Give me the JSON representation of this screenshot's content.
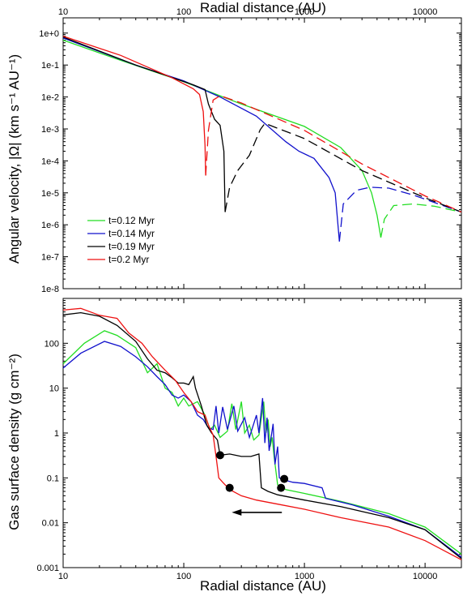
{
  "chart_data": [
    {
      "type": "line",
      "xlabel_top": "Radial distance (AU)",
      "ylabel": "Angular velocity,  |Ω|  (km s⁻¹ AU⁻¹)",
      "x_scale": "log",
      "y_scale": "log",
      "xlim": [
        10,
        20000
      ],
      "ylim": [
        1e-08,
        3
      ],
      "x_ticks": [
        "10",
        "100",
        "1000",
        "10000"
      ],
      "y_ticks": [
        "1e+0",
        "1e-1",
        "1e-2",
        "1e-3",
        "1e-4",
        "1e-5",
        "1e-6",
        "1e-7",
        "1e-8"
      ],
      "legend_position": "lower-left",
      "series": [
        {
          "name": "t=0.12 Myr",
          "color": "#22dd22",
          "solid": [
            [
              10,
              0.6
            ],
            [
              30,
              0.14
            ],
            [
              100,
              0.03
            ],
            [
              300,
              0.006
            ],
            [
              1000,
              0.0012
            ],
            [
              2000,
              0.00026
            ],
            [
              3000,
              5e-05
            ],
            [
              3600,
              1e-05
            ],
            [
              4000,
              2e-06
            ],
            [
              4300,
              4e-07
            ]
          ],
          "dashed": [
            [
              4300,
              4e-07
            ],
            [
              4600,
              1.5e-06
            ],
            [
              5500,
              4e-06
            ],
            [
              8000,
              4.5e-06
            ],
            [
              12000,
              3.8e-06
            ],
            [
              20000,
              2.5e-06
            ]
          ]
        },
        {
          "name": "t=0.14 Myr",
          "color": "#1111cc",
          "solid": [
            [
              10,
              0.7
            ],
            [
              40,
              0.1
            ],
            [
              100,
              0.032
            ],
            [
              200,
              0.01
            ],
            [
              400,
              0.0025
            ],
            [
              700,
              0.0004
            ],
            [
              900,
              0.0002
            ],
            [
              1200,
              0.00012
            ],
            [
              1600,
              3e-05
            ],
            [
              1800,
              1e-05
            ],
            [
              1950,
              3e-07
            ]
          ],
          "dashed": [
            [
              1950,
              3e-07
            ],
            [
              2100,
              4.5e-06
            ],
            [
              2700,
              1.2e-05
            ],
            [
              3500,
              1.5e-05
            ],
            [
              5000,
              1.4e-05
            ],
            [
              8000,
              8.5e-06
            ],
            [
              20000,
              2.5e-06
            ]
          ]
        },
        {
          "name": "t=0.19 Myr",
          "color": "#000000",
          "solid": [
            [
              10,
              0.75
            ],
            [
              40,
              0.1
            ],
            [
              120,
              0.024
            ],
            [
              150,
              0.017
            ],
            [
              160,
              0.006
            ],
            [
              180,
              0.002
            ],
            [
              200,
              0.0013
            ],
            [
              215,
              0.0002
            ],
            [
              220,
              2.5e-06
            ]
          ],
          "dashed": [
            [
              220,
              2.5e-06
            ],
            [
              240,
              1.5e-05
            ],
            [
              280,
              5e-05
            ],
            [
              350,
              0.00015
            ],
            [
              430,
              0.00095
            ],
            [
              470,
              0.0015
            ],
            [
              1000,
              0.0005
            ],
            [
              3000,
              5e-05
            ],
            [
              10000,
              7e-06
            ],
            [
              20000,
              2.5e-06
            ]
          ]
        },
        {
          "name": "t=0.2 Myr",
          "color": "#ee1111",
          "solid": [
            [
              10,
              0.8
            ],
            [
              30,
              0.2
            ],
            [
              80,
              0.04
            ],
            [
              120,
              0.018
            ],
            [
              135,
              0.012
            ],
            [
              145,
              0.0035
            ],
            [
              150,
              0.0003
            ],
            [
              152,
              3.5e-05
            ]
          ],
          "dashed": [
            [
              152,
              3.5e-05
            ],
            [
              160,
              0.0009
            ],
            [
              175,
              0.008
            ],
            [
              200,
              0.011
            ],
            [
              300,
              0.0065
            ],
            [
              1000,
              0.0009
            ],
            [
              3000,
              8e-05
            ],
            [
              10000,
              8e-06
            ],
            [
              20000,
              2.5e-06
            ]
          ]
        }
      ]
    },
    {
      "type": "line",
      "xlabel": "Radial distance (AU)",
      "ylabel": "Gas surface density (g cm⁻²)",
      "x_scale": "log",
      "y_scale": "log",
      "xlim": [
        10,
        20000
      ],
      "ylim": [
        0.001,
        1000
      ],
      "x_ticks": [
        "10",
        "100",
        "1000",
        "10000"
      ],
      "y_ticks": [
        "0.001",
        "0.01",
        "0.1",
        "1",
        "10",
        "100"
      ],
      "series": [
        {
          "name": "t=0.12 Myr",
          "color": "#22dd22",
          "points": [
            [
              10,
              35
            ],
            [
              15,
              100
            ],
            [
              22,
              190
            ],
            [
              28,
              150
            ],
            [
              40,
              80
            ],
            [
              50,
              22
            ],
            [
              60,
              35
            ],
            [
              70,
              10
            ],
            [
              80,
              8
            ],
            [
              90,
              4
            ],
            [
              100,
              6
            ],
            [
              110,
              4
            ],
            [
              130,
              5
            ],
            [
              150,
              2.5
            ],
            [
              165,
              1.2
            ],
            [
              180,
              1.5
            ],
            [
              200,
              0.8
            ],
            [
              230,
              1.1
            ],
            [
              250,
              4.5
            ],
            [
              270,
              1.2
            ],
            [
              300,
              5
            ],
            [
              320,
              1
            ],
            [
              350,
              1.5
            ],
            [
              380,
              0.7
            ],
            [
              420,
              0.9
            ],
            [
              460,
              5
            ],
            [
              480,
              1
            ],
            [
              500,
              2
            ],
            [
              520,
              0.5
            ],
            [
              540,
              0.8
            ],
            [
              560,
              0.3
            ],
            [
              600,
              0.07
            ],
            [
              700,
              0.055
            ],
            [
              1000,
              0.045
            ],
            [
              2000,
              0.03
            ],
            [
              5000,
              0.016
            ],
            [
              10000,
              0.008
            ],
            [
              20000,
              0.002
            ]
          ]
        },
        {
          "name": "t=0.14 Myr",
          "color": "#1111cc",
          "points": [
            [
              10,
              28
            ],
            [
              14,
              60
            ],
            [
              22,
              110
            ],
            [
              30,
              85
            ],
            [
              40,
              50
            ],
            [
              50,
              30
            ],
            [
              60,
              18
            ],
            [
              70,
              12
            ],
            [
              80,
              7
            ],
            [
              90,
              6
            ],
            [
              100,
              7
            ],
            [
              115,
              5
            ],
            [
              130,
              2.5
            ],
            [
              145,
              2
            ],
            [
              160,
              1.3
            ],
            [
              175,
              1.2
            ],
            [
              185,
              4
            ],
            [
              195,
              1
            ],
            [
              210,
              3.8
            ],
            [
              230,
              1.2
            ],
            [
              260,
              4
            ],
            [
              280,
              1.1
            ],
            [
              320,
              2.2
            ],
            [
              350,
              0.8
            ],
            [
              400,
              2.5
            ],
            [
              420,
              1
            ],
            [
              450,
              6
            ],
            [
              470,
              0.6
            ],
            [
              490,
              2.2
            ],
            [
              510,
              0.4
            ],
            [
              550,
              1.6
            ],
            [
              570,
              0.2
            ],
            [
              600,
              0.5
            ],
            [
              620,
              0.1
            ],
            [
              680,
              0.09
            ],
            [
              800,
              0.08
            ],
            [
              1000,
              0.075
            ],
            [
              1400,
              0.06
            ],
            [
              1500,
              0.035
            ],
            [
              2500,
              0.025
            ],
            [
              5000,
              0.014
            ],
            [
              10000,
              0.007
            ],
            [
              20000,
              0.0017
            ]
          ]
        },
        {
          "name": "t=0.19 Myr",
          "color": "#000000",
          "points": [
            [
              10,
              430
            ],
            [
              14,
              480
            ],
            [
              20,
              400
            ],
            [
              28,
              250
            ],
            [
              40,
              110
            ],
            [
              50,
              45
            ],
            [
              60,
              25
            ],
            [
              70,
              22
            ],
            [
              80,
              17
            ],
            [
              90,
              13
            ],
            [
              100,
              13
            ],
            [
              110,
              12
            ],
            [
              120,
              18
            ],
            [
              125,
              10
            ],
            [
              140,
              4
            ],
            [
              155,
              1.5
            ],
            [
              170,
              1
            ],
            [
              190,
              0.7
            ],
            [
              200,
              0.32
            ],
            [
              240,
              0.34
            ],
            [
              300,
              0.3
            ],
            [
              360,
              0.3
            ],
            [
              420,
              0.34
            ],
            [
              440,
              0.06
            ],
            [
              500,
              0.05
            ],
            [
              600,
              0.042
            ],
            [
              1000,
              0.032
            ],
            [
              2000,
              0.023
            ],
            [
              5000,
              0.013
            ],
            [
              10000,
              0.007
            ],
            [
              20000,
              0.0016
            ]
          ]
        },
        {
          "name": "t=0.2 Myr",
          "color": "#ee1111",
          "points": [
            [
              10,
              550
            ],
            [
              14,
              600
            ],
            [
              20,
              420
            ],
            [
              28,
              360
            ],
            [
              35,
              170
            ],
            [
              45,
              100
            ],
            [
              55,
              50
            ],
            [
              70,
              25
            ],
            [
              85,
              15
            ],
            [
              100,
              8
            ],
            [
              115,
              5
            ],
            [
              130,
              3
            ],
            [
              150,
              2.5
            ],
            [
              160,
              1.5
            ],
            [
              175,
              0.9
            ],
            [
              185,
              0.3
            ],
            [
              195,
              0.1
            ],
            [
              210,
              0.08
            ],
            [
              240,
              0.055
            ],
            [
              300,
              0.04
            ],
            [
              400,
              0.032
            ],
            [
              600,
              0.026
            ],
            [
              1000,
              0.02
            ],
            [
              2000,
              0.013
            ],
            [
              5000,
              0.008
            ],
            [
              10000,
              0.004
            ],
            [
              20000,
              0.0015
            ]
          ]
        }
      ],
      "markers": [
        [
          200,
          0.32
        ],
        [
          240,
          0.06
        ],
        [
          640,
          0.06
        ],
        [
          680,
          0.095
        ]
      ],
      "arrow": {
        "from": [
          650,
          0.017
        ],
        "to": [
          250,
          0.017
        ],
        "direction": "inward"
      }
    }
  ]
}
